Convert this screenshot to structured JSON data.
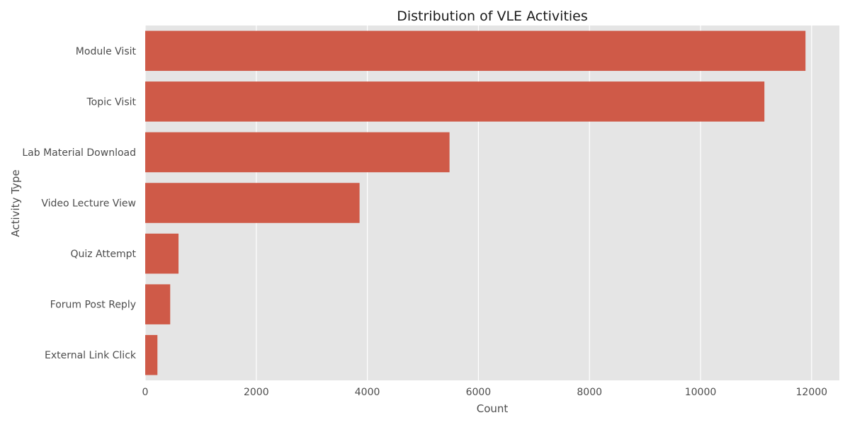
{
  "chart_data": {
    "type": "bar",
    "orientation": "horizontal",
    "title": "Distribution of VLE Activities",
    "xlabel": "Count",
    "ylabel": "Activity Type",
    "categories": [
      "Module Visit",
      "Topic Visit",
      "Lab Material Download",
      "Video Lecture View",
      "Quiz Attempt",
      "Forum Post Reply",
      "External Link Click"
    ],
    "values": [
      11890,
      11150,
      5480,
      3860,
      600,
      450,
      220
    ],
    "xlim": [
      0,
      12500
    ],
    "xticks": [
      "0",
      "2000",
      "4000",
      "6000",
      "8000",
      "10000",
      "12000"
    ],
    "grid": true,
    "colors": {
      "bar": "#cf5a48",
      "plot_background": "#e5e5e5",
      "grid": "#ffffff"
    }
  }
}
